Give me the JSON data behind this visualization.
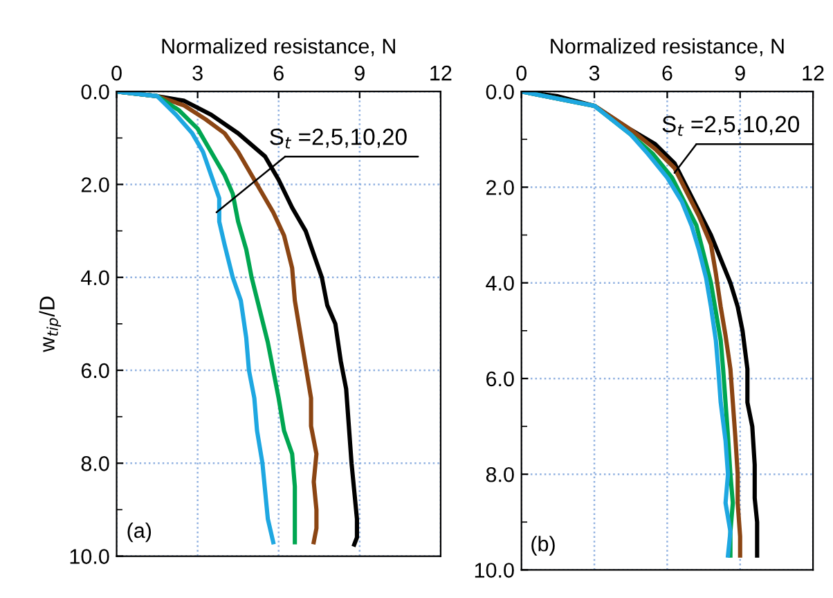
{
  "chart_data": [
    {
      "type": "line",
      "xlabel": "Normalized resistance, N",
      "ylabel": "w$_{tip}$/D",
      "xlim": [
        0,
        12
      ],
      "xticks": [
        0,
        3,
        6,
        9,
        12
      ],
      "ylim": [
        10,
        0
      ],
      "yticks": [
        {
          "value": 0,
          "label": "0.0"
        },
        {
          "value": 1,
          "label": null
        },
        {
          "value": 2,
          "label": "2.0"
        },
        {
          "value": 3,
          "label": null
        },
        {
          "value": 4,
          "label": "4.0"
        },
        {
          "value": 5,
          "label": null
        },
        {
          "value": 6,
          "label": "6.0"
        },
        {
          "value": 7,
          "label": null
        },
        {
          "value": 8,
          "label": "8.0"
        },
        {
          "value": 9,
          "label": null
        },
        {
          "value": 10,
          "label": "10.0"
        }
      ],
      "grid": true,
      "legend": false,
      "marker": "none",
      "line_style": "solid",
      "series": [
        {
          "color": "#000000",
          "x": [
            0,
            1.5,
            2.5,
            3.5,
            4.5,
            5.5,
            6,
            6.5,
            7,
            7.3,
            7.6,
            7.8,
            8.1,
            8.3,
            8.5,
            8.6,
            8.7,
            8.8,
            8.9,
            8.9,
            8.8
          ],
          "values": [
            0,
            0.1,
            0.2,
            0.5,
            0.9,
            1.4,
            1.9,
            2.5,
            3.0,
            3.5,
            4.0,
            4.6,
            5.0,
            5.8,
            6.4,
            7.2,
            8.0,
            8.6,
            9.2,
            9.6,
            9.75
          ]
        },
        {
          "color": "#8b4513",
          "x": [
            0,
            1.5,
            2.5,
            3.3,
            4,
            4.5,
            5.2,
            5.8,
            6.2,
            6.5,
            6.6,
            6.8,
            7.0,
            7.2,
            7.2,
            7.4,
            7.3,
            7.4,
            7.4,
            7.3
          ],
          "values": [
            0,
            0.1,
            0.3,
            0.6,
            0.9,
            1.3,
            2.0,
            2.6,
            3.1,
            3.8,
            4.5,
            5.2,
            5.9,
            6.6,
            7.2,
            7.8,
            8.4,
            9.0,
            9.4,
            9.7
          ]
        },
        {
          "color": "#00a651",
          "x": [
            0,
            1.5,
            2.3,
            3,
            3.5,
            4,
            4.3,
            4.5,
            4.8,
            5.0,
            5.3,
            5.6,
            5.8,
            6.0,
            6.2,
            6.5,
            6.6,
            6.6,
            6.6
          ],
          "values": [
            0,
            0.1,
            0.4,
            0.8,
            1.3,
            1.8,
            2.2,
            2.8,
            3.4,
            4.0,
            4.7,
            5.4,
            6.0,
            6.6,
            7.3,
            7.8,
            8.5,
            9.0,
            9.7
          ]
        },
        {
          "color": "#1ea7e1",
          "x": [
            0,
            1.5,
            2.2,
            2.8,
            3.2,
            3.5,
            3.8,
            3.8,
            4.0,
            4.3,
            4.6,
            4.8,
            4.9,
            5.1,
            5.2,
            5.4,
            5.5,
            5.6,
            5.8
          ],
          "values": [
            0,
            0.1,
            0.5,
            0.9,
            1.3,
            1.8,
            2.3,
            2.8,
            3.3,
            4.0,
            4.5,
            5.3,
            6.0,
            6.6,
            7.3,
            8.0,
            8.6,
            9.2,
            9.7
          ]
        }
      ],
      "annotations": [
        {
          "text": "S$_{t}$ =2,5,10,20",
          "x": 3.7,
          "y": 2.6
        },
        "(a)"
      ]
    },
    {
      "type": "line",
      "xlabel": "Normalized resistance, N",
      "xlim": [
        0,
        12
      ],
      "xticks": [
        0,
        3,
        6,
        9,
        12
      ],
      "ylim": [
        10,
        0
      ],
      "yticks": [
        {
          "value": 0,
          "label": "0.0"
        },
        {
          "value": 1,
          "label": null
        },
        {
          "value": 2,
          "label": "2.0"
        },
        {
          "value": 3,
          "label": null
        },
        {
          "value": 4,
          "label": "4.0"
        },
        {
          "value": 5,
          "label": null
        },
        {
          "value": 6,
          "label": "6.0"
        },
        {
          "value": 7,
          "label": null
        },
        {
          "value": 8,
          "label": "8.0"
        },
        {
          "value": 9,
          "label": null
        },
        {
          "value": 10,
          "label": "10.0"
        }
      ],
      "grid": true,
      "legend": false,
      "marker": "none",
      "line_style": "solid",
      "series": [
        {
          "color": "#000000",
          "x": [
            0,
            1.5,
            3,
            4.5,
            5.5,
            6.3,
            6.8,
            7.3,
            7.8,
            8.2,
            8.6,
            8.9,
            9.1,
            9.3,
            9.3,
            9.5,
            9.6,
            9.6,
            9.7,
            9.7
          ],
          "values": [
            0,
            0.1,
            0.3,
            0.8,
            1.1,
            1.5,
            2.0,
            2.5,
            3.0,
            3.5,
            4.0,
            4.5,
            5.0,
            5.8,
            6.5,
            7.0,
            7.8,
            8.5,
            9.0,
            9.7
          ]
        },
        {
          "color": "#8b4513",
          "x": [
            0,
            3,
            4.5,
            5.5,
            6.3,
            6.8,
            7.3,
            7.8,
            8.0,
            8.2,
            8.4,
            8.6,
            8.7,
            8.8,
            8.9,
            8.9,
            9.0,
            9.0
          ],
          "values": [
            0,
            0.3,
            0.8,
            1.2,
            1.6,
            2.1,
            2.6,
            3.2,
            3.8,
            4.5,
            5.1,
            5.8,
            6.5,
            7.2,
            8.0,
            8.6,
            9.3,
            9.7
          ]
        },
        {
          "color": "#00a651",
          "x": [
            0,
            3,
            4.5,
            5.4,
            6.2,
            6.7,
            7.2,
            7.5,
            7.8,
            8.0,
            8.2,
            8.3,
            8.4,
            8.5,
            8.6,
            8.7,
            8.6,
            8.6
          ],
          "values": [
            0,
            0.3,
            0.9,
            1.3,
            1.8,
            2.3,
            2.8,
            3.4,
            4.0,
            4.6,
            5.2,
            5.8,
            6.5,
            7.2,
            8.0,
            8.6,
            9.2,
            9.7
          ]
        },
        {
          "color": "#1ea7e1",
          "x": [
            0,
            3,
            4.5,
            5.2,
            6.0,
            6.6,
            7.0,
            7.3,
            7.6,
            7.8,
            8.0,
            8.1,
            8.2,
            8.4,
            8.5,
            8.4,
            8.6,
            8.5
          ],
          "values": [
            0,
            0.3,
            0.9,
            1.3,
            1.8,
            2.3,
            2.8,
            3.3,
            3.9,
            4.5,
            5.2,
            5.8,
            6.5,
            7.3,
            8.0,
            8.6,
            9.2,
            9.7
          ]
        }
      ],
      "annotations": [
        {
          "text": "S$_{t}$ =2,5,10,20",
          "x": 6.3,
          "y": 1.7
        },
        "(b)"
      ]
    }
  ]
}
